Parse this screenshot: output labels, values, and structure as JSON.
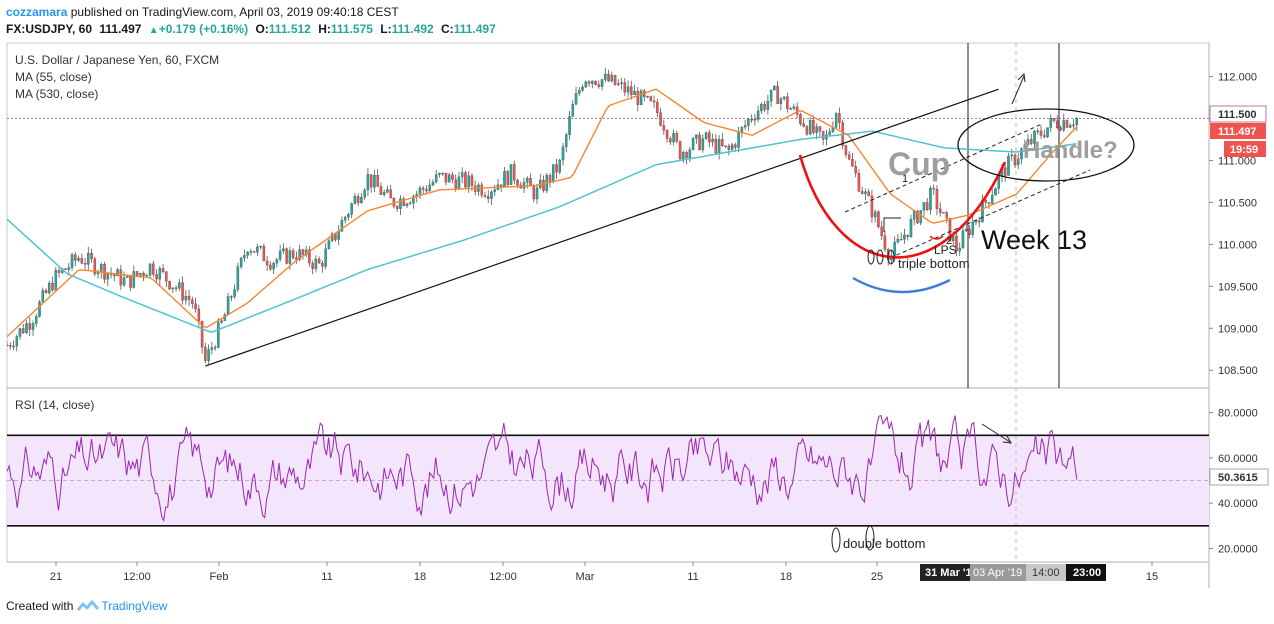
{
  "header": {
    "author": "cozzamara",
    "published": "published on TradingView.com, April 03, 2019 09:40:18 CEST",
    "symbol": "FX:USDJPY, 60",
    "last": "111.497",
    "change": "+0.179 (+0.16%)",
    "open_label": "O:",
    "open": "111.512",
    "high_label": "H:",
    "high": "111.575",
    "low_label": "L:",
    "low": "111.492",
    "close_label": "C:",
    "close": "111.497"
  },
  "legend": {
    "title": "U.S. Dollar / Japanese Yen, 60, FXCM",
    "ma55": "MA (55, close)",
    "ma530": "MA (530, close)",
    "rsi": "RSI (14, close)"
  },
  "annotations": {
    "cup": "Cup",
    "handle": "Handle?",
    "week": "Week 13",
    "lps": "LPS",
    "triple": "triple bottom",
    "double": "double bottom",
    "one": "1",
    "two": "2"
  },
  "price_tags": {
    "level": "111.500",
    "last": "111.497",
    "countdown": "19:59",
    "rsi": "50.3615"
  },
  "time_tags": {
    "left": "31 Mar '19",
    "mid": "03 Apr '19",
    "t1": "14:00",
    "t2": "23:00"
  },
  "footer": {
    "created": "Created with",
    "brand": "TradingView"
  },
  "colors": {
    "ma55": "#f7862f",
    "ma530": "#4fc4cf",
    "rsi": "#9c27b0",
    "up": "#26a69a",
    "cup": "#ee1111",
    "blue_arc": "#3b7dd8"
  },
  "chart_data": [
    {
      "type": "candlestick",
      "title": "U.S. Dollar / Japanese Yen, 60, FXCM",
      "x_ticks": [
        "21",
        "12:00",
        "Feb",
        "11",
        "18",
        "12:00",
        "Mar",
        "11",
        "18",
        "25",
        "15"
      ],
      "y_ticks": [
        "112.000",
        "111.500",
        "111.000",
        "110.500",
        "110.000",
        "109.500",
        "109.000",
        "108.500"
      ],
      "ylim": [
        108.3,
        112.4
      ],
      "anchor_series": {
        "name": "Price (approx close)",
        "points": [
          [
            0,
            108.8
          ],
          [
            0.02,
            109.1
          ],
          [
            0.04,
            109.6
          ],
          [
            0.06,
            109.85
          ],
          [
            0.08,
            109.7
          ],
          [
            0.1,
            109.55
          ],
          [
            0.12,
            109.75
          ],
          [
            0.14,
            109.5
          ],
          [
            0.155,
            109.3
          ],
          [
            0.165,
            108.6
          ],
          [
            0.18,
            109.1
          ],
          [
            0.2,
            110.0
          ],
          [
            0.22,
            109.8
          ],
          [
            0.24,
            109.9
          ],
          [
            0.26,
            109.75
          ],
          [
            0.28,
            110.3
          ],
          [
            0.3,
            110.8
          ],
          [
            0.32,
            110.5
          ],
          [
            0.34,
            110.6
          ],
          [
            0.36,
            110.8
          ],
          [
            0.38,
            110.75
          ],
          [
            0.4,
            110.65
          ],
          [
            0.42,
            110.85
          ],
          [
            0.44,
            110.6
          ],
          [
            0.46,
            110.95
          ],
          [
            0.47,
            111.6
          ],
          [
            0.48,
            112.0
          ],
          [
            0.5,
            111.95
          ],
          [
            0.52,
            111.8
          ],
          [
            0.54,
            111.6
          ],
          [
            0.56,
            111.1
          ],
          [
            0.58,
            111.25
          ],
          [
            0.6,
            111.1
          ],
          [
            0.62,
            111.55
          ],
          [
            0.64,
            111.8
          ],
          [
            0.66,
            111.5
          ],
          [
            0.68,
            111.2
          ],
          [
            0.69,
            111.6
          ],
          [
            0.7,
            111.0
          ],
          [
            0.72,
            110.4
          ],
          [
            0.735,
            109.85
          ],
          [
            0.75,
            110.2
          ],
          [
            0.77,
            110.6
          ],
          [
            0.79,
            109.95
          ],
          [
            0.81,
            110.4
          ],
          [
            0.83,
            110.9
          ],
          [
            0.85,
            111.2
          ],
          [
            0.87,
            111.45
          ],
          [
            0.89,
            111.5
          ]
        ]
      },
      "ma55_points": [
        [
          0,
          108.9
        ],
        [
          0.06,
          109.7
        ],
        [
          0.12,
          109.6
        ],
        [
          0.165,
          109.0
        ],
        [
          0.2,
          109.3
        ],
        [
          0.24,
          109.8
        ],
        [
          0.3,
          110.4
        ],
        [
          0.36,
          110.65
        ],
        [
          0.44,
          110.7
        ],
        [
          0.47,
          110.8
        ],
        [
          0.5,
          111.65
        ],
        [
          0.54,
          111.85
        ],
        [
          0.58,
          111.45
        ],
        [
          0.62,
          111.3
        ],
        [
          0.66,
          111.6
        ],
        [
          0.7,
          111.3
        ],
        [
          0.735,
          110.6
        ],
        [
          0.77,
          110.25
        ],
        [
          0.8,
          110.35
        ],
        [
          0.84,
          110.6
        ],
        [
          0.87,
          111.1
        ],
        [
          0.89,
          111.4
        ]
      ],
      "ma530_points": [
        [
          0,
          110.3
        ],
        [
          0.05,
          109.65
        ],
        [
          0.1,
          109.35
        ],
        [
          0.17,
          108.95
        ],
        [
          0.24,
          109.35
        ],
        [
          0.3,
          109.7
        ],
        [
          0.38,
          110.05
        ],
        [
          0.46,
          110.45
        ],
        [
          0.54,
          110.95
        ],
        [
          0.6,
          111.1
        ],
        [
          0.66,
          111.25
        ],
        [
          0.72,
          111.35
        ],
        [
          0.78,
          111.15
        ],
        [
          0.84,
          111.1
        ],
        [
          0.89,
          111.2
        ]
      ],
      "trendline": [
        [
          0.165,
          108.55
        ],
        [
          0.825,
          111.85
        ]
      ],
      "horizontal_level": 111.5,
      "last_price": 111.497
    },
    {
      "type": "line",
      "title": "RSI (14, close)",
      "y_ticks": [
        "80.0000",
        "60.0000",
        "40.0000",
        "20.0000"
      ],
      "ylim": [
        14,
        90
      ],
      "bands": [
        30,
        70
      ],
      "midline": 50,
      "last_value": 50.3615
    }
  ]
}
